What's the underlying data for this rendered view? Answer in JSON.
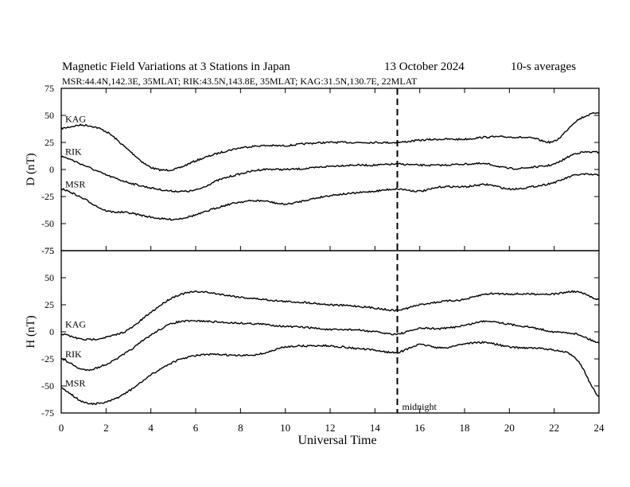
{
  "header": {
    "title": "Magnetic Field Variations at 3 Stations in Japan",
    "date": "13 October 2024",
    "averaging": "10-s averages",
    "stations_line": "MSR:44.4N,142.3E, 35MLAT;  RIK:43.5N,143.8E, 35MLAT;  KAG:31.5N,130.7E, 22MLAT"
  },
  "chart_data": [
    {
      "type": "line",
      "panel": "D",
      "ylabel": "D (nT)",
      "ylim": [
        -75,
        75
      ],
      "yticks": [
        75,
        50,
        25,
        0,
        -25,
        -50,
        -75
      ],
      "xlim": [
        0,
        24
      ],
      "x": [
        0,
        1,
        2,
        3,
        4,
        5,
        6,
        7,
        8,
        9,
        10,
        11,
        12,
        13,
        14,
        15,
        16,
        17,
        18,
        19,
        20,
        21,
        22,
        23,
        24
      ],
      "series": [
        {
          "name": "KAG",
          "values": [
            38,
            41,
            35,
            18,
            2,
            0,
            8,
            15,
            20,
            22,
            22,
            24,
            25,
            25,
            25,
            25,
            27,
            28,
            28,
            30,
            30,
            29,
            26,
            45,
            53
          ]
        },
        {
          "name": "RIK",
          "values": [
            12,
            4,
            -5,
            -12,
            -17,
            -20,
            -19,
            -10,
            -4,
            0,
            0,
            1,
            3,
            4,
            4,
            5,
            4,
            4,
            5,
            5,
            1,
            2,
            5,
            15,
            16
          ]
        },
        {
          "name": "MSR",
          "values": [
            -18,
            -27,
            -38,
            -40,
            -44,
            -46,
            -42,
            -35,
            -30,
            -29,
            -32,
            -28,
            -24,
            -22,
            -20,
            -18,
            -20,
            -16,
            -16,
            -14,
            -18,
            -16,
            -12,
            -5,
            -5
          ]
        }
      ]
    },
    {
      "type": "line",
      "panel": "H",
      "ylabel": "H (nT)",
      "ylim": [
        -75,
        75
      ],
      "yticks": [
        75,
        50,
        25,
        0,
        -25,
        -50,
        -75
      ],
      "xlim": [
        0,
        24
      ],
      "x": [
        0,
        1,
        2,
        3,
        4,
        5,
        6,
        7,
        8,
        9,
        10,
        11,
        12,
        13,
        14,
        15,
        16,
        17,
        18,
        19,
        20,
        21,
        22,
        23,
        24
      ],
      "series": [
        {
          "name": "KAG",
          "values": [
            -2,
            -7,
            -5,
            2,
            18,
            32,
            37,
            35,
            32,
            30,
            28,
            27,
            25,
            24,
            22,
            20,
            25,
            28,
            30,
            35,
            35,
            35,
            35,
            37,
            30
          ]
        },
        {
          "name": "RIK",
          "values": [
            -25,
            -35,
            -30,
            -18,
            -3,
            8,
            10,
            9,
            8,
            7,
            5,
            4,
            2,
            2,
            0,
            -2,
            3,
            3,
            6,
            10,
            7,
            4,
            0,
            -2,
            -10
          ]
        },
        {
          "name": "MSR",
          "values": [
            -52,
            -65,
            -65,
            -55,
            -40,
            -28,
            -22,
            -21,
            -22,
            -20,
            -14,
            -13,
            -13,
            -15,
            -17,
            -19,
            -12,
            -15,
            -11,
            -10,
            -14,
            -15,
            -17,
            -25,
            -60
          ]
        }
      ]
    }
  ],
  "xaxis": {
    "label": "Universal Time",
    "ticks": [
      0,
      2,
      4,
      6,
      8,
      10,
      12,
      14,
      16,
      18,
      20,
      22,
      24
    ]
  },
  "marker": {
    "x": 15,
    "label": "midnight"
  }
}
